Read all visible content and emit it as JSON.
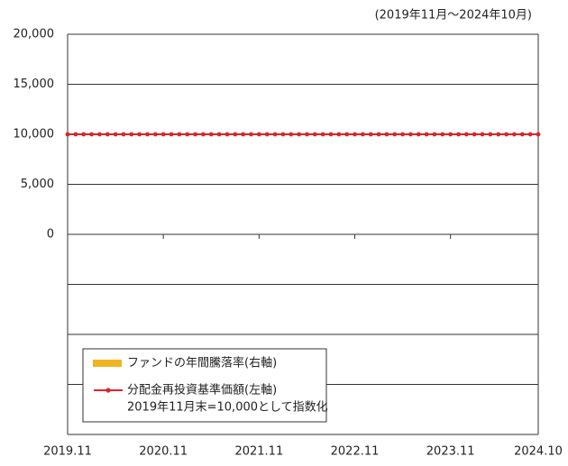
{
  "chart_data": {
    "type": "line",
    "subtitle": "(2019年11月～2024年10月)",
    "categories": [
      "2019.11",
      null,
      null,
      null,
      null,
      null,
      null,
      null,
      null,
      null,
      null,
      null,
      "2020.11",
      null,
      null,
      null,
      null,
      null,
      null,
      null,
      null,
      null,
      null,
      null,
      "2021.11",
      null,
      null,
      null,
      null,
      null,
      null,
      null,
      null,
      null,
      null,
      null,
      "2022.11",
      null,
      null,
      null,
      null,
      null,
      null,
      null,
      null,
      null,
      null,
      null,
      "2023.11",
      null,
      null,
      null,
      null,
      null,
      null,
      null,
      null,
      null,
      null,
      "2024.10"
    ],
    "series": [
      {
        "name": "ファンドの年間騰落率(右軸)",
        "color": "#f0b323",
        "axis": "y2"
      },
      {
        "name": "分配金再投資基準価額(左軸)",
        "color": "#d7262e",
        "values": [
          10000,
          10000,
          10000,
          10000,
          10000,
          10000,
          10000,
          10000,
          10000,
          10000,
          10000,
          10000,
          10000,
          10000,
          10000,
          10000,
          10000,
          10000,
          10000,
          10000,
          10000,
          10000,
          10000,
          10000,
          10000,
          10000,
          10000,
          10000,
          10000,
          10000,
          10000,
          10000,
          10000,
          10000,
          10000,
          10000,
          10000,
          10000,
          10000,
          10000,
          10000,
          10000,
          10000,
          10000,
          10000,
          10000,
          10000,
          10000,
          10000,
          10000,
          10000,
          10000,
          10000,
          10000,
          10000,
          10000,
          10000,
          10000,
          10000,
          10000
        ]
      }
    ],
    "legend_note": "2019年11月末=10,000として指数化",
    "ylim": [
      -20000,
      20000
    ],
    "yticks": [
      0,
      {
        "value": 5000,
        "label": "5,000"
      },
      {
        "value": 10000,
        "label": "10,000"
      },
      {
        "value": 15000,
        "label": "15,000"
      },
      {
        "value": 20000,
        "label": "20,000"
      }
    ],
    "grid": true
  }
}
